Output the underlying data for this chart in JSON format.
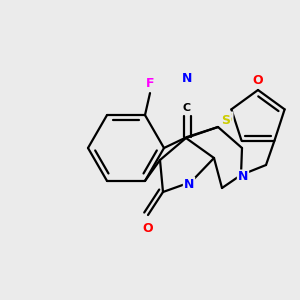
{
  "bg_color": "#ebebeb",
  "atom_colors": {
    "C": "#000000",
    "N": "#0000ff",
    "O": "#ff0000",
    "S": "#cccc00",
    "F": "#ff00ff"
  },
  "bond_color": "#000000",
  "bond_width": 1.6
}
